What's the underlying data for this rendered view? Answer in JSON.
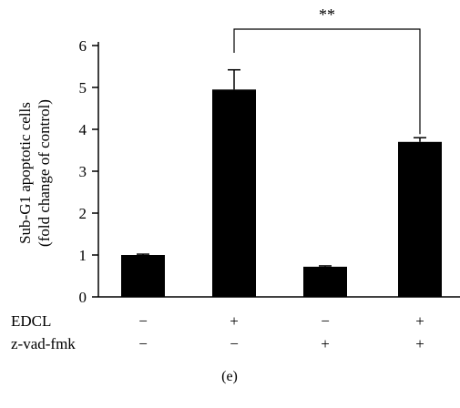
{
  "chart_data": {
    "type": "bar",
    "ylabel_line1": "Sub-G1 apoptotic cells",
    "ylabel_line2": "(fold change of control)",
    "ylim": [
      0,
      6
    ],
    "yticks": [
      0,
      1,
      2,
      3,
      4,
      5,
      6
    ],
    "values": [
      1.0,
      4.95,
      0.72,
      3.7
    ],
    "errors": [
      0.02,
      0.47,
      0.02,
      0.1
    ],
    "bar_color": "#000000",
    "conditions": [
      {
        "label": "EDCL",
        "values": [
          "−",
          "+",
          "−",
          "+"
        ]
      },
      {
        "label": "z-vad-fmk",
        "values": [
          "−",
          "−",
          "+",
          "+"
        ]
      }
    ],
    "significance": {
      "text": "**",
      "from_index": 1,
      "to_index": 3
    },
    "panel_label": "(e)"
  }
}
